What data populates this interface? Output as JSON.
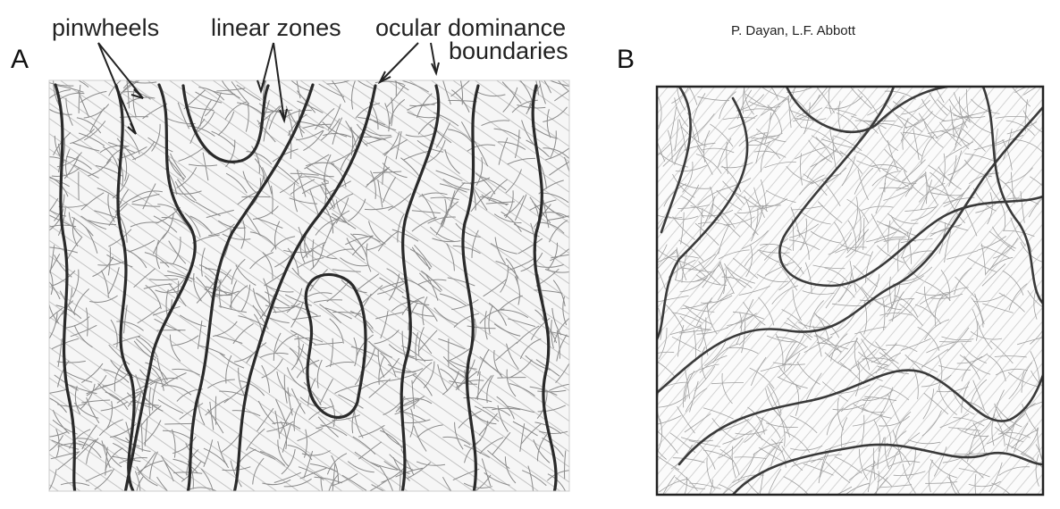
{
  "panels": {
    "a": {
      "letter": "A"
    },
    "b": {
      "letter": "B"
    }
  },
  "annotations": {
    "pinwheels": "pinwheels",
    "linear_zones": "linear zones",
    "ocular_line1": "ocular dominance",
    "ocular_line2": "boundaries"
  },
  "credit": "P. Dayan, L.F. Abbott",
  "colors": {
    "contour": "#8a8a8a",
    "boundary": "#2a2a2a",
    "frame": "#222222"
  }
}
